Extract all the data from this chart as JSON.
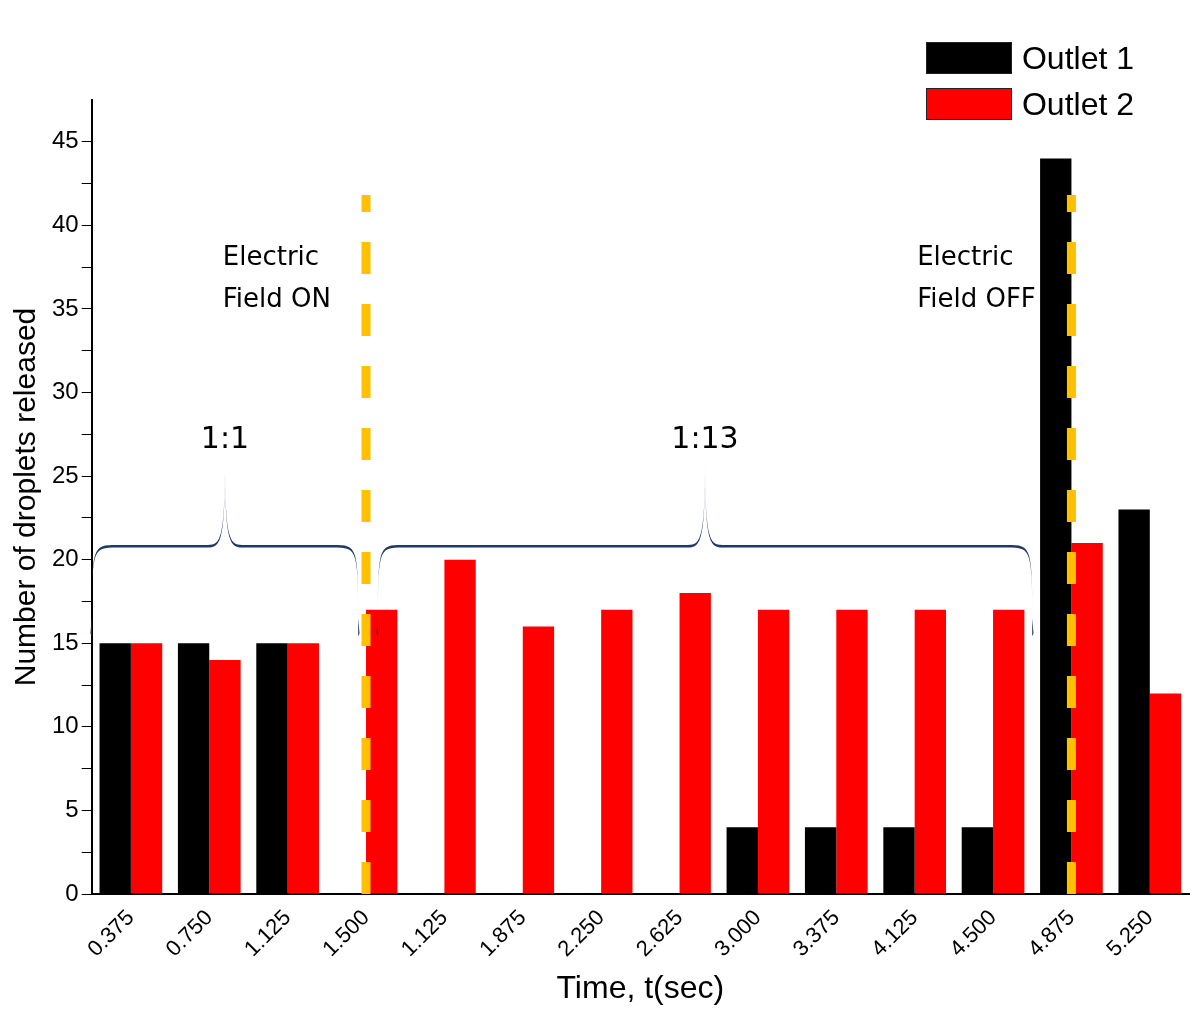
{
  "chart_data": {
    "type": "bar",
    "xlabel": "Time, t(sec)",
    "ylabel": "Number of droplets released",
    "categories": [
      "0.375",
      "0.750",
      "1.125",
      "1.500",
      "1.125",
      "1.875",
      "2.250",
      "2.625",
      "3.000",
      "3.375",
      "4.125",
      "4.500",
      "4.875",
      "5.250"
    ],
    "series": [
      {
        "name": "Outlet 1",
        "color": "#000000",
        "values": [
          15,
          15,
          15,
          0,
          0,
          0,
          0,
          0,
          4,
          4,
          4,
          4,
          44,
          23
        ]
      },
      {
        "name": "Outlet 2",
        "color": "#ff0000",
        "values": [
          15,
          14,
          15,
          17,
          20,
          16,
          17,
          18,
          17,
          17,
          17,
          17,
          21,
          12
        ]
      }
    ],
    "ylim": [
      0,
      47.5
    ],
    "yticks": [
      0,
      {
        "value": 2.5,
        "label": null
      },
      5,
      {
        "value": 7.5,
        "label": null
      },
      10,
      {
        "value": 12.5,
        "label": null
      },
      15,
      {
        "value": 17.5,
        "label": null
      },
      20,
      {
        "value": 22.5,
        "label": null
      },
      25,
      {
        "value": 27.5,
        "label": null
      },
      30,
      {
        "value": 32.5,
        "label": null
      },
      35,
      {
        "value": 37.5,
        "label": null
      },
      40,
      {
        "value": 42.5,
        "label": null
      },
      45
    ],
    "ref_lines": [
      {
        "axis": "x",
        "value": "1.500",
        "label": "Electric Field ON",
        "color": "#ffc000",
        "line_style": "dashed"
      },
      {
        "axis": "x",
        "value": "4.875",
        "label": "Electric Field OFF",
        "color": "#ffc000",
        "line_style": "dashed"
      }
    ],
    "annotations": [
      "1:1",
      "1:13"
    ],
    "grid": false,
    "legend": "top right"
  }
}
